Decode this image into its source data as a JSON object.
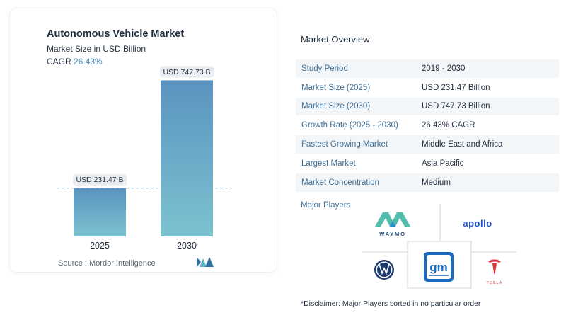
{
  "chart_data": {
    "type": "bar",
    "title": "Autonomous Vehicle Market",
    "subtitle": "Market Size in USD Billion",
    "cagr_label": "CAGR",
    "cagr_value": "26.43%",
    "categories": [
      "2025",
      "2030"
    ],
    "values": [
      231.47,
      747.73
    ],
    "data_labels": [
      "USD 231.47 B",
      "USD 747.73 B"
    ],
    "ylim": [
      0,
      800
    ],
    "grid": false
  },
  "source": "Source :  Mordor Intelligence",
  "overview": {
    "title": "Market Overview",
    "rows": [
      {
        "label": "Study Period",
        "value": "2019 - 2030"
      },
      {
        "label": "Market Size (2025)",
        "value": "USD 231.47 Billion"
      },
      {
        "label": "Market Size (2030)",
        "value": "USD 747.73 Billion"
      },
      {
        "label": "Growth Rate (2025 - 2030)",
        "value": "26.43% CAGR"
      },
      {
        "label": "Fastest Growing Market",
        "value": "Middle East and Africa"
      },
      {
        "label": "Largest Market",
        "value": "Asia Pacific"
      },
      {
        "label": "Market Concentration",
        "value": "Medium"
      }
    ]
  },
  "players": {
    "title": "Major Players",
    "logos": {
      "waymo": "WAYMO",
      "apollo": "apollo",
      "gm": "gm",
      "tesla": "TESLA"
    }
  },
  "disclaimer": "*Disclaimer: Major Players sorted in no particular order",
  "colors": {
    "bar_top": "#5b93bf",
    "bar_bottom": "#7cc2d0",
    "accent": "#4b8fb7",
    "label_bg": "#e9edf1"
  }
}
